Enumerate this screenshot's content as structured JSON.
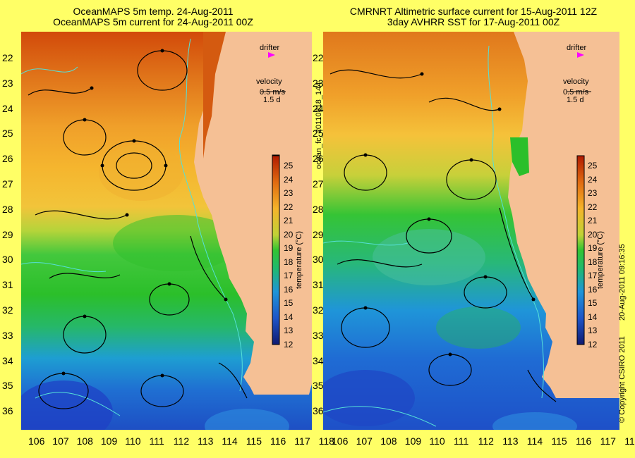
{
  "left": {
    "title1": "OceanMAPS 5m temp. 24-Aug-2011",
    "title2": "OceanMAPS 5m current for 24-Aug-2011 00Z"
  },
  "right": {
    "title1": "CMRNRT Altimetric surface current for 15-Aug-2011 12Z",
    "title2": "3day AVHRR SST for 17-Aug-2011 00Z"
  },
  "legend": {
    "drifter": "drifter",
    "velocity": "velocity",
    "speed": "0.5 m/s",
    "days": "1.5 d"
  },
  "colorbar": {
    "label": "temperature (°C)",
    "ticks": [
      "25",
      "24",
      "23",
      "22",
      "21",
      "20",
      "19",
      "18",
      "17",
      "16",
      "15",
      "14",
      "13",
      "12"
    ]
  },
  "side_label": "ocean_fc_20110818_144",
  "copyright": "© Copyright CSIRO 2011",
  "timestamp": "20-Aug-2011 09:16:35",
  "lat_ticks": [
    "22",
    "23",
    "24",
    "25",
    "26",
    "27",
    "28",
    "29",
    "30",
    "31",
    "32",
    "33",
    "34",
    "35",
    "36"
  ],
  "lon_ticks": [
    "106",
    "107",
    "108",
    "109",
    "110",
    "111",
    "112",
    "113",
    "114",
    "115",
    "116",
    "117",
    "118"
  ],
  "colors": {
    "background": "#ffff66",
    "land": "#f5c095",
    "drifter_marker": "#ff00ff",
    "contour": "#55e0d8"
  }
}
